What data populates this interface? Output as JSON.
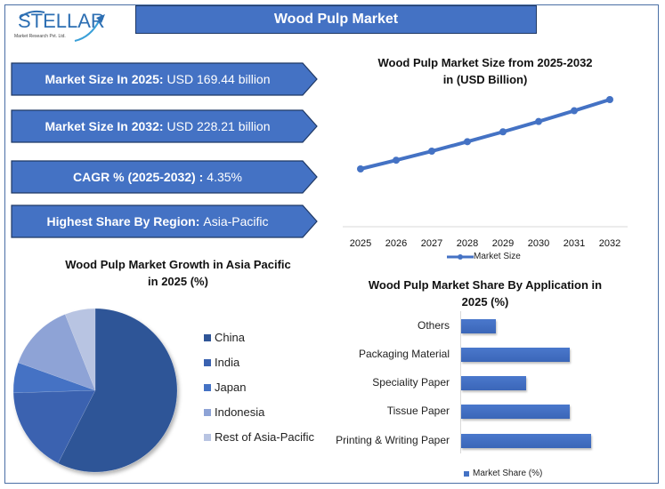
{
  "header": {
    "logo_text": "STELLAR",
    "logo_subtext": "Market Research Pvt. Ltd.",
    "title": "Wood Pulp Market"
  },
  "stats": [
    {
      "label": "Market Size In 2025:",
      "value": "USD 169.44 billion"
    },
    {
      "label": "Market Size In 2032:",
      "value": "USD 228.21 billion"
    },
    {
      "label": "CAGR % (2025-2032) :",
      "value": "4.35%"
    },
    {
      "label": "Highest Share By Region:",
      "value": "Asia-Pacific"
    }
  ],
  "colors": {
    "accent": "#4472c4",
    "border": "#1f3864",
    "line": "#4472c4"
  },
  "chart_data": [
    {
      "type": "line",
      "title": "Wood Pulp Market Size from 2025-2032 in (USD Billion)",
      "title_line1": "Wood Pulp Market Size from 2025-2032",
      "title_line2": "in (USD Billion)",
      "categories": [
        "2025",
        "2026",
        "2027",
        "2028",
        "2029",
        "2030",
        "2031",
        "2032"
      ],
      "series": [
        {
          "name": "Market Size",
          "values": [
            169.44,
            176.81,
            184.5,
            192.53,
            200.9,
            209.64,
            218.76,
            228.21
          ]
        }
      ],
      "xlabel": "",
      "ylabel": "",
      "grid": false,
      "legend_position": "bottom"
    },
    {
      "type": "pie",
      "title": "Wood Pulp Market Growth in Asia Pacific in 2025 (%)",
      "title_line1": "Wood Pulp Market Growth in Asia Pacific",
      "title_line2": "in 2025 (%)",
      "categories": [
        "China",
        "India",
        "Japan",
        "Indonesia",
        "Rest of Asia-Pacific"
      ],
      "values": [
        57.5,
        17,
        6,
        13.5,
        6
      ],
      "colors": [
        "#2f5597",
        "#3a62b0",
        "#4472c4",
        "#8ea3d6",
        "#b8c4e2"
      ],
      "legend_position": "right"
    },
    {
      "type": "bar",
      "orientation": "horizontal",
      "title": "Wood Pulp Market Share By Application in 2025 (%)",
      "title_line1": "Wood Pulp Market Share By Application in",
      "title_line2": "2025 (%)",
      "categories": [
        "Others",
        "Packaging Material",
        "Speciality Paper",
        "Tissue Paper",
        "Printing & Writing Paper"
      ],
      "series": [
        {
          "name": "Market Share (%)",
          "values": [
            8,
            25,
            15,
            25,
            30
          ]
        }
      ],
      "legend_position": "bottom"
    }
  ]
}
